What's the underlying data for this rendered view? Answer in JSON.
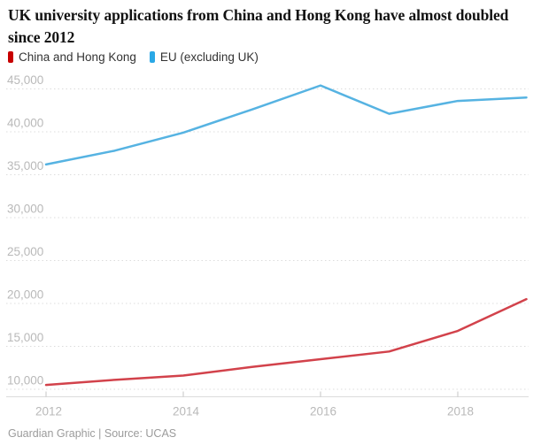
{
  "title": "UK university applications from China and Hong Kong have almost doubled since 2012",
  "legend": [
    {
      "label": "China and Hong Kong",
      "swatch_color": "#c70000"
    },
    {
      "label": "EU (excluding UK)",
      "swatch_color": "#2aa8e6"
    }
  ],
  "footer": "Guardian Graphic | Source: UCAS",
  "chart_data": {
    "type": "line",
    "x": [
      2012,
      2013,
      2014,
      2015,
      2016,
      2017,
      2018,
      2019
    ],
    "series": [
      {
        "name": "China and Hong Kong",
        "color": "#d2424b",
        "values": [
          10500,
          11100,
          11600,
          12600,
          13500,
          14400,
          16800,
          20500
        ]
      },
      {
        "name": "EU (excluding UK)",
        "color": "#56b3e2",
        "values": [
          36200,
          37800,
          39900,
          42600,
          45400,
          42100,
          43600,
          44000
        ]
      }
    ],
    "xlabel": "",
    "ylabel": "",
    "ylim": [
      10000,
      47500
    ],
    "xlim": [
      2012,
      2019
    ],
    "grid": "horizontal-dotted",
    "legend_position": "top-left",
    "y_ticks": [
      {
        "value": 10000,
        "label": "10,000"
      },
      {
        "value": 15000,
        "label": "15,000"
      },
      {
        "value": 20000,
        "label": "20,000"
      },
      {
        "value": 25000,
        "label": "25,000"
      },
      {
        "value": 30000,
        "label": "30,000"
      },
      {
        "value": 35000,
        "label": "35,000"
      },
      {
        "value": 40000,
        "label": "40,000"
      },
      {
        "value": 45000,
        "label": "45,000"
      }
    ],
    "x_ticks": [
      {
        "value": 2012,
        "label": "2012"
      },
      {
        "value": 2014,
        "label": "2014"
      },
      {
        "value": 2016,
        "label": "2016"
      },
      {
        "value": 2018,
        "label": "2018"
      }
    ]
  }
}
